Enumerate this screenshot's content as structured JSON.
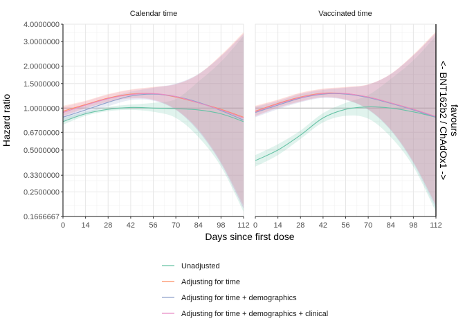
{
  "chart_data": {
    "type": "line",
    "xlabel": "Days since first dose",
    "ylabel": "Hazard ratio",
    "right_label_line1": "favours",
    "right_label_line2": "<- BNT162b2 / ChAdOx1 ->",
    "x_ticks": [
      0,
      14,
      28,
      42,
      56,
      70,
      84,
      98,
      112
    ],
    "xlim": [
      0,
      112
    ],
    "y_scale": "log",
    "ylim": [
      0.1666667,
      4.0
    ],
    "y_ticks": [
      0.1666667,
      0.25,
      0.33,
      0.5,
      0.67,
      1.0,
      1.5,
      2.0,
      3.0,
      4.0
    ],
    "y_tick_labels": [
      "0.1666667",
      "0.2500000",
      "0.3300000",
      "0.5000000",
      "0.6700000",
      "1.0000000",
      "1.5000000",
      "2.0000000",
      "3.0000000",
      "4.0000000"
    ],
    "reference_line": 1.0,
    "grid": true,
    "legend_position": "bottom",
    "colors": {
      "Unadjusted": "#66c2a5",
      "Adjusting for time": "#fc8d62",
      "Adjusting for time + demographics": "#8da0cb",
      "Adjusting for time + demographics + clinical": "#e78ac3"
    },
    "series_names": [
      "Unadjusted",
      "Adjusting for time",
      "Adjusting for time + demographics",
      "Adjusting for time + demographics + clinical"
    ],
    "panels": [
      {
        "title": "Calendar time",
        "series": [
          {
            "name": "Unadjusted",
            "x": [
              0,
              14,
              28,
              42,
              56,
              70,
              84,
              98,
              112
            ],
            "y": [
              0.8,
              0.91,
              0.98,
              1.01,
              1.0,
              0.99,
              0.97,
              0.91,
              0.8
            ],
            "lower": [
              0.76,
              0.88,
              0.95,
              0.97,
              0.94,
              0.85,
              0.62,
              0.38,
              0.18
            ],
            "upper": [
              0.85,
              0.94,
              1.02,
              1.06,
              1.09,
              1.16,
              1.55,
              2.15,
              3.3
            ]
          },
          {
            "name": "Adjusting for time",
            "x": [
              0,
              14,
              28,
              42,
              56,
              70,
              84,
              98,
              112
            ],
            "y": [
              0.95,
              1.06,
              1.18,
              1.26,
              1.27,
              1.2,
              1.09,
              0.98,
              0.86
            ],
            "lower": [
              0.88,
              1.0,
              1.11,
              1.18,
              1.15,
              0.98,
              0.7,
              0.41,
              0.2
            ],
            "upper": [
              1.04,
              1.13,
              1.26,
              1.36,
              1.42,
              1.48,
              1.75,
              2.4,
              3.5
            ]
          },
          {
            "name": "Adjusting for time + demographics",
            "x": [
              0,
              14,
              28,
              42,
              56,
              70,
              84,
              98,
              112
            ],
            "y": [
              0.86,
              0.97,
              1.1,
              1.22,
              1.26,
              1.21,
              1.1,
              0.96,
              0.82
            ],
            "lower": [
              0.8,
              0.91,
              1.03,
              1.14,
              1.13,
              0.97,
              0.68,
              0.4,
              0.19
            ],
            "upper": [
              0.94,
              1.04,
              1.18,
              1.31,
              1.4,
              1.5,
              1.76,
              2.35,
              3.4
            ]
          },
          {
            "name": "Adjusting for time + demographics + clinical",
            "x": [
              0,
              14,
              28,
              42,
              56,
              70,
              84,
              98,
              112
            ],
            "y": [
              0.93,
              1.05,
              1.17,
              1.25,
              1.27,
              1.21,
              1.09,
              0.97,
              0.85
            ],
            "lower": [
              0.86,
              0.99,
              1.1,
              1.17,
              1.14,
              0.97,
              0.69,
              0.4,
              0.19
            ],
            "upper": [
              1.02,
              1.12,
              1.25,
              1.35,
              1.41,
              1.49,
              1.74,
              2.38,
              3.45
            ]
          }
        ]
      },
      {
        "title": "Vaccinated time",
        "series": [
          {
            "name": "Unadjusted",
            "x": [
              0,
              14,
              28,
              42,
              56,
              70,
              84,
              98,
              112
            ],
            "y": [
              0.42,
              0.5,
              0.64,
              0.85,
              0.98,
              1.02,
              1.0,
              0.94,
              0.86
            ],
            "lower": [
              0.38,
              0.46,
              0.6,
              0.79,
              0.88,
              0.84,
              0.62,
              0.38,
              0.18
            ],
            "upper": [
              0.46,
              0.55,
              0.69,
              0.92,
              1.09,
              1.24,
              1.62,
              2.2,
              3.3
            ]
          },
          {
            "name": "Adjusting for time",
            "x": [
              0,
              14,
              28,
              42,
              56,
              70,
              84,
              98,
              112
            ],
            "y": [
              0.95,
              1.08,
              1.2,
              1.28,
              1.27,
              1.2,
              1.09,
              0.98,
              0.87
            ],
            "lower": [
              0.88,
              1.01,
              1.12,
              1.2,
              1.15,
              0.98,
              0.7,
              0.41,
              0.2
            ],
            "upper": [
              1.04,
              1.15,
              1.29,
              1.38,
              1.42,
              1.48,
              1.76,
              2.42,
              3.55
            ]
          },
          {
            "name": "Adjusting for time + demographics",
            "x": [
              0,
              14,
              28,
              42,
              56,
              70,
              84,
              98,
              112
            ],
            "y": [
              0.93,
              1.05,
              1.18,
              1.26,
              1.26,
              1.19,
              1.08,
              0.97,
              0.86
            ],
            "lower": [
              0.86,
              0.98,
              1.1,
              1.18,
              1.14,
              0.97,
              0.69,
              0.4,
              0.19
            ],
            "upper": [
              1.02,
              1.12,
              1.26,
              1.35,
              1.4,
              1.47,
              1.75,
              2.38,
              3.45
            ]
          },
          {
            "name": "Adjusting for time + demographics + clinical",
            "x": [
              0,
              14,
              28,
              42,
              56,
              70,
              84,
              98,
              112
            ],
            "y": [
              0.94,
              1.07,
              1.19,
              1.27,
              1.27,
              1.2,
              1.09,
              0.98,
              0.87
            ],
            "lower": [
              0.87,
              1.0,
              1.11,
              1.19,
              1.15,
              0.98,
              0.7,
              0.41,
              0.2
            ],
            "upper": [
              1.03,
              1.14,
              1.28,
              1.37,
              1.41,
              1.48,
              1.76,
              2.4,
              3.5
            ]
          }
        ]
      }
    ]
  }
}
